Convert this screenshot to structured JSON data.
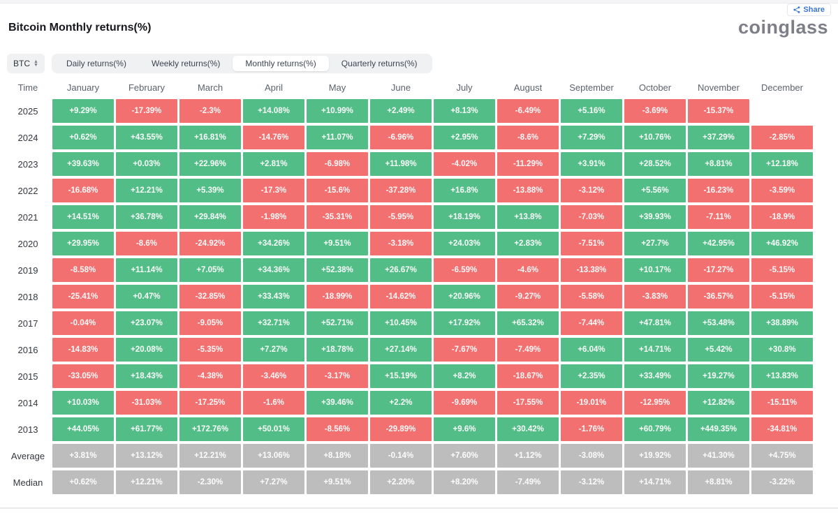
{
  "page": {
    "title": "Bitcoin Monthly returns(%)",
    "logo": "coinglass",
    "share_label": "Share"
  },
  "controls": {
    "symbol_value": "BTC",
    "tabs": [
      {
        "label": "Daily returns(%)",
        "active": false
      },
      {
        "label": "Weekly returns(%)",
        "active": false
      },
      {
        "label": "Monthly returns(%)",
        "active": true
      },
      {
        "label": "Quarterly returns(%)",
        "active": false
      }
    ]
  },
  "colors": {
    "positive": "#53bd87",
    "negative": "#f37070",
    "neutral": "#bdbdbd",
    "share_blue": "#3b76d2"
  },
  "table": {
    "time_header": "Time",
    "month_headers": [
      "January",
      "February",
      "March",
      "April",
      "May",
      "June",
      "July",
      "August",
      "September",
      "October",
      "November",
      "December"
    ],
    "rows": [
      {
        "label": "2025",
        "type": "data",
        "cells": [
          "+9.29%",
          "-17.39%",
          "-2.3%",
          "+14.08%",
          "+10.99%",
          "+2.49%",
          "+8.13%",
          "-6.49%",
          "+5.16%",
          "-3.69%",
          "-15.37%",
          ""
        ]
      },
      {
        "label": "2024",
        "type": "data",
        "cells": [
          "+0.62%",
          "+43.55%",
          "+16.81%",
          "-14.76%",
          "+11.07%",
          "-6.96%",
          "+2.95%",
          "-8.6%",
          "+7.29%",
          "+10.76%",
          "+37.29%",
          "-2.85%"
        ]
      },
      {
        "label": "2023",
        "type": "data",
        "cells": [
          "+39.63%",
          "+0.03%",
          "+22.96%",
          "+2.81%",
          "-6.98%",
          "+11.98%",
          "-4.02%",
          "-11.29%",
          "+3.91%",
          "+28.52%",
          "+8.81%",
          "+12.18%"
        ]
      },
      {
        "label": "2022",
        "type": "data",
        "cells": [
          "-16.68%",
          "+12.21%",
          "+5.39%",
          "-17.3%",
          "-15.6%",
          "-37.28%",
          "+16.8%",
          "-13.88%",
          "-3.12%",
          "+5.56%",
          "-16.23%",
          "-3.59%"
        ]
      },
      {
        "label": "2021",
        "type": "data",
        "cells": [
          "+14.51%",
          "+36.78%",
          "+29.84%",
          "-1.98%",
          "-35.31%",
          "-5.95%",
          "+18.19%",
          "+13.8%",
          "-7.03%",
          "+39.93%",
          "-7.11%",
          "-18.9%"
        ]
      },
      {
        "label": "2020",
        "type": "data",
        "cells": [
          "+29.95%",
          "-8.6%",
          "-24.92%",
          "+34.26%",
          "+9.51%",
          "-3.18%",
          "+24.03%",
          "+2.83%",
          "-7.51%",
          "+27.7%",
          "+42.95%",
          "+46.92%"
        ]
      },
      {
        "label": "2019",
        "type": "data",
        "cells": [
          "-8.58%",
          "+11.14%",
          "+7.05%",
          "+34.36%",
          "+52.38%",
          "+26.67%",
          "-6.59%",
          "-4.6%",
          "-13.38%",
          "+10.17%",
          "-17.27%",
          "-5.15%"
        ]
      },
      {
        "label": "2018",
        "type": "data",
        "cells": [
          "-25.41%",
          "+0.47%",
          "-32.85%",
          "+33.43%",
          "-18.99%",
          "-14.62%",
          "+20.96%",
          "-9.27%",
          "-5.58%",
          "-3.83%",
          "-36.57%",
          "-5.15%"
        ]
      },
      {
        "label": "2017",
        "type": "data",
        "cells": [
          "-0.04%",
          "+23.07%",
          "-9.05%",
          "+32.71%",
          "+52.71%",
          "+10.45%",
          "+17.92%",
          "+65.32%",
          "-7.44%",
          "+47.81%",
          "+53.48%",
          "+38.89%"
        ]
      },
      {
        "label": "2016",
        "type": "data",
        "cells": [
          "-14.83%",
          "+20.08%",
          "-5.35%",
          "+7.27%",
          "+18.78%",
          "+27.14%",
          "-7.67%",
          "-7.49%",
          "+6.04%",
          "+14.71%",
          "+5.42%",
          "+30.8%"
        ]
      },
      {
        "label": "2015",
        "type": "data",
        "cells": [
          "-33.05%",
          "+18.43%",
          "-4.38%",
          "-3.46%",
          "-3.17%",
          "+15.19%",
          "+8.2%",
          "-18.67%",
          "+2.35%",
          "+33.49%",
          "+19.27%",
          "+13.83%"
        ]
      },
      {
        "label": "2014",
        "type": "data",
        "cells": [
          "+10.03%",
          "-31.03%",
          "-17.25%",
          "-1.6%",
          "+39.46%",
          "+2.2%",
          "-9.69%",
          "-17.55%",
          "-19.01%",
          "-12.95%",
          "+12.82%",
          "-15.11%"
        ]
      },
      {
        "label": "2013",
        "type": "data",
        "cells": [
          "+44.05%",
          "+61.77%",
          "+172.76%",
          "+50.01%",
          "-8.56%",
          "-29.89%",
          "+9.6%",
          "+30.42%",
          "-1.76%",
          "+60.79%",
          "+449.35%",
          "-34.81%"
        ]
      },
      {
        "label": "Average",
        "type": "summary",
        "cells": [
          "+3.81%",
          "+13.12%",
          "+12.21%",
          "+13.06%",
          "+8.18%",
          "-0.14%",
          "+7.60%",
          "+1.12%",
          "-3.08%",
          "+19.92%",
          "+41.30%",
          "+4.75%"
        ]
      },
      {
        "label": "Median",
        "type": "summary",
        "cells": [
          "+0.62%",
          "+12.21%",
          "-2.30%",
          "+7.27%",
          "+9.51%",
          "+2.20%",
          "+8.20%",
          "-7.49%",
          "-3.12%",
          "+14.71%",
          "+8.81%",
          "-3.22%"
        ]
      }
    ]
  },
  "chart_data": {
    "type": "heatmap",
    "title": "Bitcoin Monthly returns(%)",
    "columns": [
      "January",
      "February",
      "March",
      "April",
      "May",
      "June",
      "July",
      "August",
      "September",
      "October",
      "November",
      "December"
    ],
    "rows": [
      "2025",
      "2024",
      "2023",
      "2022",
      "2021",
      "2020",
      "2019",
      "2018",
      "2017",
      "2016",
      "2015",
      "2014",
      "2013",
      "Average",
      "Median"
    ],
    "values_pct": [
      [
        9.29,
        -17.39,
        -2.3,
        14.08,
        10.99,
        2.49,
        8.13,
        -6.49,
        5.16,
        -3.69,
        -15.37,
        null
      ],
      [
        0.62,
        43.55,
        16.81,
        -14.76,
        11.07,
        -6.96,
        2.95,
        -8.6,
        7.29,
        10.76,
        37.29,
        -2.85
      ],
      [
        39.63,
        0.03,
        22.96,
        2.81,
        -6.98,
        11.98,
        -4.02,
        -11.29,
        3.91,
        28.52,
        8.81,
        12.18
      ],
      [
        -16.68,
        12.21,
        5.39,
        -17.3,
        -15.6,
        -37.28,
        16.8,
        -13.88,
        -3.12,
        5.56,
        -16.23,
        -3.59
      ],
      [
        14.51,
        36.78,
        29.84,
        -1.98,
        -35.31,
        -5.95,
        18.19,
        13.8,
        -7.03,
        39.93,
        -7.11,
        -18.9
      ],
      [
        29.95,
        -8.6,
        -24.92,
        34.26,
        9.51,
        -3.18,
        24.03,
        2.83,
        -7.51,
        27.7,
        42.95,
        46.92
      ],
      [
        -8.58,
        11.14,
        7.05,
        34.36,
        52.38,
        26.67,
        -6.59,
        -4.6,
        -13.38,
        10.17,
        -17.27,
        -5.15
      ],
      [
        -25.41,
        0.47,
        -32.85,
        33.43,
        -18.99,
        -14.62,
        20.96,
        -9.27,
        -5.58,
        -3.83,
        -36.57,
        -5.15
      ],
      [
        -0.04,
        23.07,
        -9.05,
        32.71,
        52.71,
        10.45,
        17.92,
        65.32,
        -7.44,
        47.81,
        53.48,
        38.89
      ],
      [
        -14.83,
        20.08,
        -5.35,
        7.27,
        18.78,
        27.14,
        -7.67,
        -7.49,
        6.04,
        14.71,
        5.42,
        30.8
      ],
      [
        -33.05,
        18.43,
        -4.38,
        -3.46,
        -3.17,
        15.19,
        8.2,
        -18.67,
        2.35,
        33.49,
        19.27,
        13.83
      ],
      [
        10.03,
        -31.03,
        -17.25,
        -1.6,
        39.46,
        2.2,
        -9.69,
        -17.55,
        -19.01,
        -12.95,
        12.82,
        -15.11
      ],
      [
        44.05,
        61.77,
        172.76,
        50.01,
        -8.56,
        -29.89,
        9.6,
        30.42,
        -1.76,
        60.79,
        449.35,
        -34.81
      ],
      [
        3.81,
        13.12,
        12.21,
        13.06,
        8.18,
        -0.14,
        7.6,
        1.12,
        -3.08,
        19.92,
        41.3,
        4.75
      ],
      [
        0.62,
        12.21,
        -2.3,
        7.27,
        9.51,
        2.2,
        8.2,
        -7.49,
        -3.12,
        14.71,
        8.81,
        -3.22
      ]
    ],
    "color_rule": "positive=green, negative=red, Average/Median rows=gray, 2025 December missing",
    "legend_position": "none",
    "grid": "off"
  }
}
